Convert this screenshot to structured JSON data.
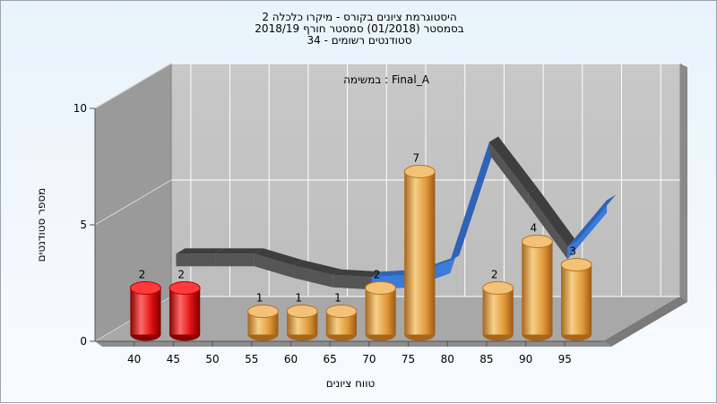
{
  "chart_data": {
    "type": "bar",
    "title_lines": [
      "היסטוגרמת ציונים בקורס - מיקרו כלכלה 2",
      "בסמסטר  (01/2018)  סמסטר חורף 2018/19",
      "סטודנטים רשומים - 34"
    ],
    "subtitle": "במשימה : Final_A",
    "xlabel": "טווח ציונים",
    "ylabel": "מספר סטודנטים",
    "ylim": [
      0,
      10
    ],
    "yticks": [
      0,
      5,
      10
    ],
    "categories": [
      "40",
      "45",
      "50",
      "55",
      "60",
      "65",
      "70",
      "75",
      "80",
      "85",
      "90",
      "95"
    ],
    "values": [
      2,
      2,
      0,
      1,
      1,
      1,
      2,
      7,
      0,
      2,
      4,
      3
    ],
    "data_labels": [
      "2",
      "2",
      "",
      "1",
      "1",
      "1",
      "2",
      "7",
      "",
      "2",
      "4",
      "3"
    ],
    "curve": [
      2.7,
      2.7,
      2.7,
      2.2,
      1.8,
      1.7,
      1.8,
      2.4,
      7.5,
      5.3,
      3.0,
      5.0
    ],
    "colors": {
      "fail": "#e01010",
      "pass": "#e8a040",
      "curve_front": "#3a7ad8",
      "curve_back": "#555555",
      "wall": "#c4c4c4",
      "side_wall": "#999999",
      "floor": "#a8a8a8"
    },
    "fail_below": 55,
    "grid": true
  }
}
